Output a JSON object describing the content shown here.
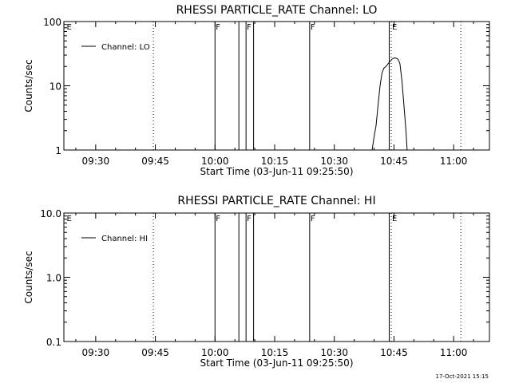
{
  "chart_data": [
    {
      "type": "line",
      "title": "RHESSI PARTICLE_RATE Channel: LO",
      "xlabel": "Start Time (03-Jun-11 09:25:50)",
      "ylabel": "Counts/sec",
      "y_scale": "log",
      "ylim": [
        1,
        100
      ],
      "y_ticks": [
        1,
        10,
        100
      ],
      "y_tick_labels": [
        "1",
        "10",
        "100"
      ],
      "xlim": [
        "09:22",
        "11:09"
      ],
      "x_ticks": [
        "09:30",
        "09:45",
        "10:00",
        "10:15",
        "10:30",
        "10:45",
        "11:00"
      ],
      "legend": {
        "position": "top-left",
        "entries": [
          "Channel: LO"
        ]
      },
      "series": [
        {
          "name": "Channel: LO",
          "x": [
            "10:39.5",
            "10:40",
            "10:40.5",
            "10:41",
            "10:41.5",
            "10:42",
            "10:42.5",
            "10:43",
            "10:43.5",
            "10:44",
            "10:44.5",
            "10:45",
            "10:45.5",
            "10:46",
            "10:46.5",
            "10:47",
            "10:47.5",
            "10:48",
            "10:48.3"
          ],
          "values": [
            1,
            1.6,
            2.4,
            5,
            10,
            16,
            19,
            20,
            22,
            24,
            26,
            27,
            27,
            26,
            22,
            12,
            5,
            2,
            1
          ]
        }
      ],
      "markers": [
        {
          "time": "09:22.5",
          "label": "E",
          "style": "none"
        },
        {
          "time": "09:44.5",
          "label": "",
          "style": "dotted"
        },
        {
          "time": "10:00",
          "label": "F",
          "style": "solid"
        },
        {
          "time": "10:06",
          "label": "",
          "style": "solid"
        },
        {
          "time": "10:07.8",
          "label": "F",
          "style": "solid"
        },
        {
          "time": "10:09.7",
          "label": "",
          "style": "solid"
        },
        {
          "time": "10:23.8",
          "label": "F",
          "style": "solid"
        },
        {
          "time": "10:43.8",
          "label": "",
          "style": "solid"
        },
        {
          "time": "10:44.3",
          "label": "E",
          "style": "dotted"
        },
        {
          "time": "11:01.8",
          "label": "",
          "style": "dotted"
        }
      ]
    },
    {
      "type": "line",
      "title": "RHESSI PARTICLE_RATE Channel: HI",
      "xlabel": "Start Time (03-Jun-11 09:25:50)",
      "ylabel": "Counts/sec",
      "y_scale": "log",
      "ylim": [
        0.1,
        10
      ],
      "y_ticks": [
        0.1,
        1,
        10
      ],
      "y_tick_labels": [
        "0.1",
        "1.0",
        "10.0"
      ],
      "xlim": [
        "09:22",
        "11:09"
      ],
      "x_ticks": [
        "09:30",
        "09:45",
        "10:00",
        "10:15",
        "10:30",
        "10:45",
        "11:00"
      ],
      "legend": {
        "position": "top-left",
        "entries": [
          "Channel: HI"
        ]
      },
      "series": [
        {
          "name": "Channel: HI",
          "x": [],
          "values": []
        }
      ],
      "markers": [
        {
          "time": "09:22.5",
          "label": "E",
          "style": "none"
        },
        {
          "time": "09:44.5",
          "label": "",
          "style": "dotted"
        },
        {
          "time": "10:00",
          "label": "F",
          "style": "solid"
        },
        {
          "time": "10:06",
          "label": "",
          "style": "solid"
        },
        {
          "time": "10:07.8",
          "label": "F",
          "style": "solid"
        },
        {
          "time": "10:09.7",
          "label": "",
          "style": "solid"
        },
        {
          "time": "10:23.8",
          "label": "F",
          "style": "solid"
        },
        {
          "time": "10:43.8",
          "label": "",
          "style": "solid"
        },
        {
          "time": "10:44.3",
          "label": "E",
          "style": "dotted"
        },
        {
          "time": "11:01.8",
          "label": "",
          "style": "dotted"
        }
      ]
    }
  ],
  "footer": {
    "timestamp": "17-Oct-2021 15:15"
  }
}
